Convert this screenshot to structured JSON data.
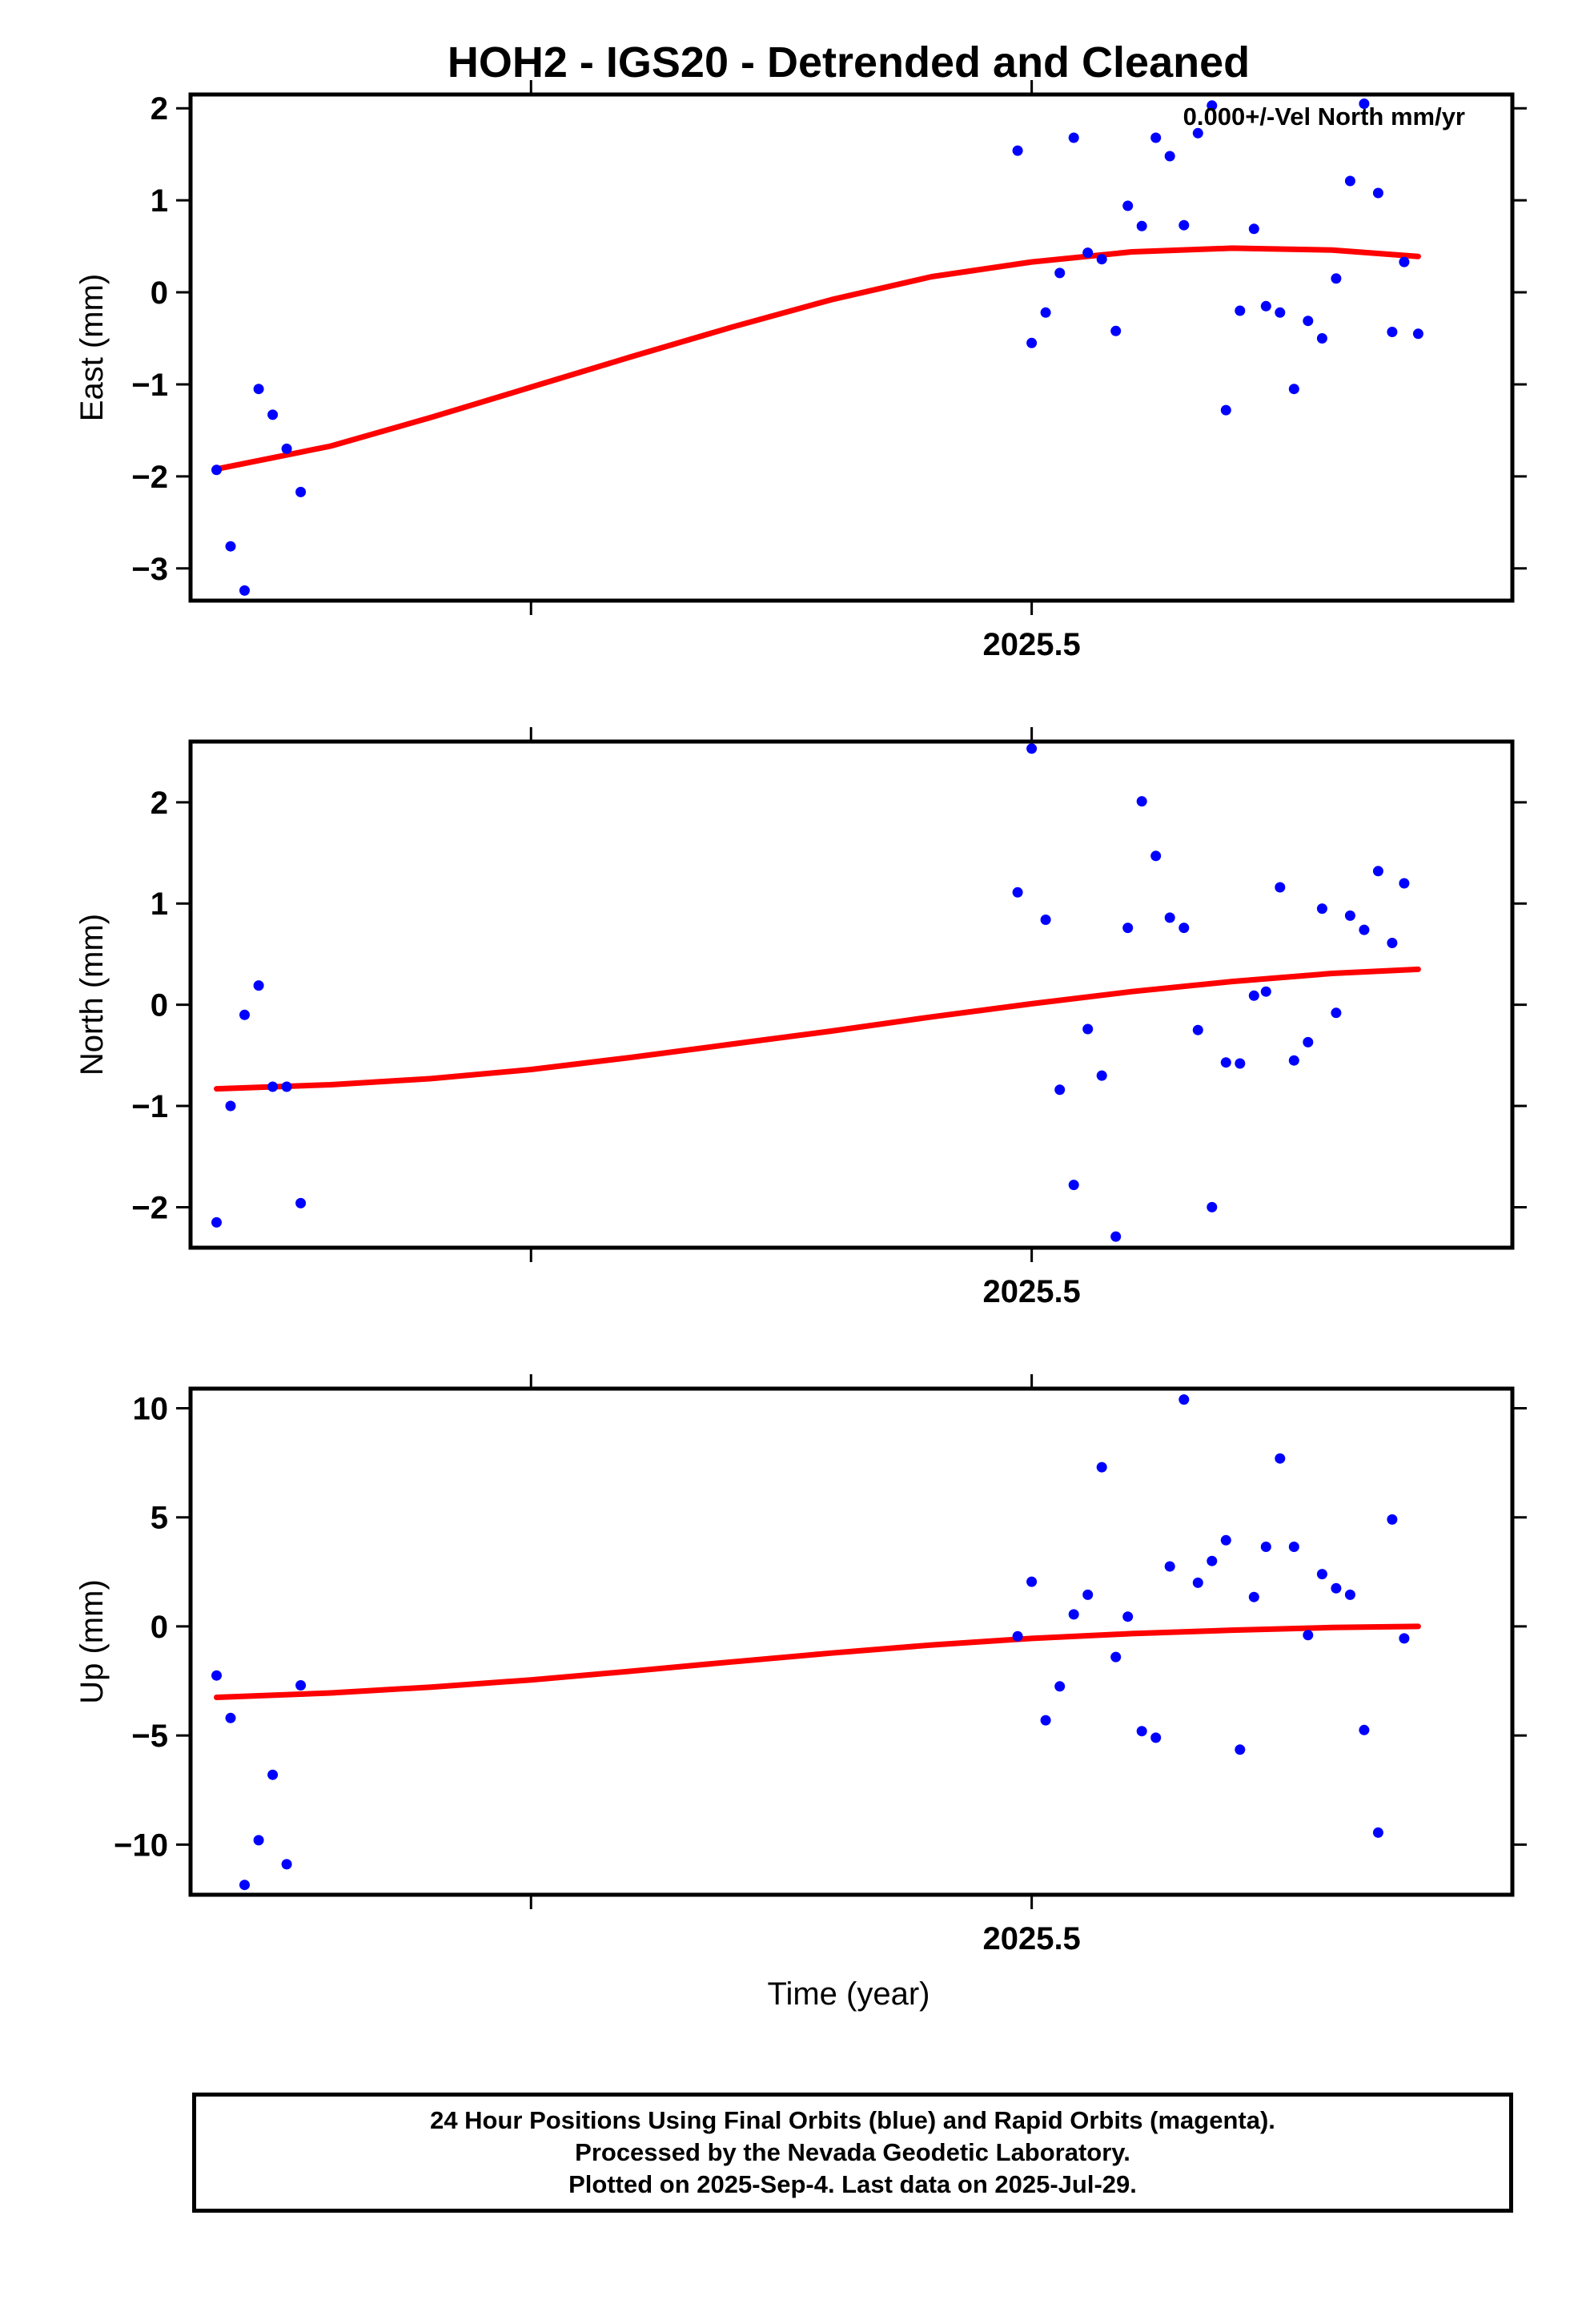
{
  "title": "HOH2 - IGS20 - Detrended and Cleaned",
  "velocity_label": "0.000+/-Vel North mm/yr",
  "xlabel": "Time (year)",
  "caption": [
    "24 Hour Positions Using Final Orbits (blue) and Rapid Orbits (magenta).",
    "Processed by the Nevada Geodetic Laboratory.",
    "Plotted on 2025-Sep-4. Last data on 2025-Jul-29."
  ],
  "colors": {
    "final_orbits": "#0000ff",
    "fit": "#ff0000",
    "frame": "#000000"
  },
  "chart_data": [
    {
      "type": "scatter",
      "ylabel": "East (mm)",
      "xlim": [
        2025.08,
        2025.74
      ],
      "ylim": [
        -3.35,
        2.15
      ],
      "yticks": [
        -3,
        -2,
        -1,
        0,
        1,
        2
      ],
      "xticks": [
        2025.25,
        2025.5
      ],
      "xticklabels": [
        {
          "value": 2025.5,
          "label": "2025.5"
        }
      ],
      "series": [
        {
          "kind": "points",
          "x": [
            2025.093,
            2025.1,
            2025.107,
            2025.114,
            2025.121,
            2025.128,
            2025.135,
            2025.493,
            2025.5,
            2025.507,
            2025.514,
            2025.521,
            2025.528,
            2025.535,
            2025.542,
            2025.548,
            2025.555,
            2025.562,
            2025.569,
            2025.576,
            2025.583,
            2025.59,
            2025.597,
            2025.604,
            2025.611,
            2025.617,
            2025.624,
            2025.631,
            2025.638,
            2025.645,
            2025.652,
            2025.659,
            2025.666,
            2025.673,
            2025.68,
            2025.686,
            2025.693
          ],
          "y": [
            -1.93,
            -2.76,
            -3.24,
            -1.05,
            -1.33,
            -1.7,
            -2.17,
            1.54,
            -0.55,
            -0.22,
            0.21,
            1.68,
            0.43,
            0.36,
            -0.42,
            0.94,
            0.72,
            1.68,
            1.48,
            0.73,
            1.73,
            2.03,
            -1.28,
            -0.2,
            0.69,
            -0.15,
            -0.22,
            -1.05,
            -0.31,
            -0.5,
            0.15,
            1.21,
            2.05,
            1.08,
            -0.43,
            0.33,
            -0.45
          ]
        },
        {
          "kind": "fit",
          "x": [
            2025.093,
            2025.15,
            2025.2,
            2025.25,
            2025.3,
            2025.35,
            2025.4,
            2025.45,
            2025.5,
            2025.55,
            2025.6,
            2025.65,
            2025.693
          ],
          "y": [
            -1.92,
            -1.67,
            -1.36,
            -1.03,
            -0.7,
            -0.38,
            -0.08,
            0.17,
            0.33,
            0.44,
            0.48,
            0.46,
            0.39
          ]
        }
      ]
    },
    {
      "type": "scatter",
      "ylabel": "North (mm)",
      "xlim": [
        2025.08,
        2025.74
      ],
      "ylim": [
        -2.4,
        2.6
      ],
      "yticks": [
        -2,
        -1,
        0,
        1,
        2
      ],
      "xticks": [
        2025.25,
        2025.5
      ],
      "xticklabels": [
        {
          "value": 2025.5,
          "label": "2025.5"
        }
      ],
      "series": [
        {
          "kind": "points",
          "x": [
            2025.093,
            2025.1,
            2025.107,
            2025.114,
            2025.121,
            2025.128,
            2025.135,
            2025.493,
            2025.5,
            2025.507,
            2025.514,
            2025.521,
            2025.528,
            2025.535,
            2025.542,
            2025.548,
            2025.555,
            2025.562,
            2025.569,
            2025.576,
            2025.583,
            2025.59,
            2025.597,
            2025.604,
            2025.611,
            2025.617,
            2025.624,
            2025.631,
            2025.638,
            2025.645,
            2025.652,
            2025.659,
            2025.666,
            2025.673,
            2025.68,
            2025.686
          ],
          "y": [
            -2.15,
            -1.0,
            -0.1,
            0.19,
            -0.81,
            -0.81,
            -1.96,
            1.11,
            2.53,
            0.84,
            -0.84,
            -1.78,
            -0.24,
            -0.7,
            -2.29,
            0.76,
            2.01,
            1.47,
            0.86,
            0.76,
            -0.25,
            -2.0,
            -0.57,
            -0.58,
            0.09,
            0.13,
            1.16,
            -0.55,
            -0.37,
            0.95,
            -0.08,
            0.88,
            0.74,
            1.32,
            0.61,
            1.2
          ]
        },
        {
          "kind": "fit",
          "x": [
            2025.093,
            2025.15,
            2025.2,
            2025.25,
            2025.3,
            2025.35,
            2025.4,
            2025.45,
            2025.5,
            2025.55,
            2025.6,
            2025.65,
            2025.693
          ],
          "y": [
            -0.83,
            -0.79,
            -0.73,
            -0.64,
            -0.52,
            -0.39,
            -0.26,
            -0.12,
            0.01,
            0.13,
            0.23,
            0.31,
            0.35
          ]
        }
      ]
    },
    {
      "type": "scatter",
      "ylabel": "Up (mm)",
      "xlim": [
        2025.08,
        2025.74
      ],
      "ylim": [
        -12.3,
        10.9
      ],
      "yticks": [
        -10,
        -5,
        0,
        5,
        10
      ],
      "xticks": [
        2025.25,
        2025.5
      ],
      "xticklabels": [
        {
          "value": 2025.5,
          "label": "2025.5"
        }
      ],
      "series": [
        {
          "kind": "points",
          "x": [
            2025.093,
            2025.1,
            2025.107,
            2025.114,
            2025.121,
            2025.128,
            2025.135,
            2025.493,
            2025.5,
            2025.507,
            2025.514,
            2025.521,
            2025.528,
            2025.535,
            2025.542,
            2025.548,
            2025.555,
            2025.562,
            2025.569,
            2025.576,
            2025.583,
            2025.59,
            2025.597,
            2025.604,
            2025.611,
            2025.617,
            2025.624,
            2025.631,
            2025.638,
            2025.645,
            2025.652,
            2025.659,
            2025.666,
            2025.673,
            2025.68,
            2025.686
          ],
          "y": [
            -2.25,
            -4.2,
            -11.85,
            -9.8,
            -6.8,
            -10.9,
            -2.7,
            -0.45,
            2.05,
            -4.3,
            -2.75,
            0.55,
            1.45,
            7.3,
            -1.4,
            0.45,
            -4.8,
            -5.1,
            2.75,
            10.4,
            2.0,
            3.0,
            3.95,
            -5.65,
            1.35,
            3.65,
            7.7,
            3.65,
            -0.4,
            2.4,
            1.75,
            1.45,
            -4.75,
            -9.45,
            4.9,
            -0.55
          ]
        },
        {
          "kind": "fit",
          "x": [
            2025.093,
            2025.15,
            2025.2,
            2025.25,
            2025.3,
            2025.35,
            2025.4,
            2025.45,
            2025.5,
            2025.55,
            2025.6,
            2025.65,
            2025.693
          ],
          "y": [
            -3.25,
            -3.05,
            -2.78,
            -2.45,
            -2.05,
            -1.63,
            -1.22,
            -0.85,
            -0.55,
            -0.33,
            -0.17,
            -0.05,
            0.0
          ]
        }
      ]
    }
  ]
}
